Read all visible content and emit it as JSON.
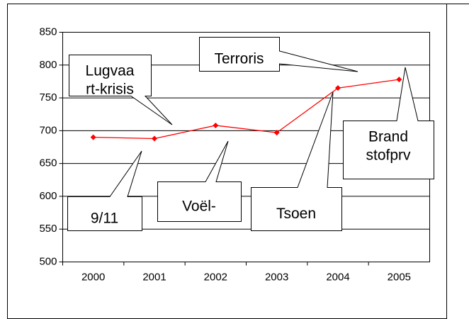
{
  "chart_data": {
    "type": "line",
    "categories": [
      "2000",
      "2001",
      "2002",
      "2003",
      "2004",
      "2005"
    ],
    "series": [
      {
        "color": "#ff0000",
        "values": [
          690,
          688,
          708,
          697,
          765,
          778
        ]
      }
    ],
    "ylim": [
      500,
      850
    ],
    "yticks": [
      500,
      550,
      600,
      650,
      700,
      750,
      800,
      850
    ],
    "grid": true,
    "annotations": [
      {
        "lines": [
          "Lugvaa",
          "rt-krisis"
        ]
      },
      {
        "lines": [
          "Terroris"
        ]
      },
      {
        "lines": [
          "Brand",
          "stofprv"
        ]
      },
      {
        "lines": [
          "Tsoen"
        ]
      },
      {
        "lines": [
          "Voël-"
        ]
      },
      {
        "lines": [
          "9/11"
        ]
      }
    ]
  }
}
